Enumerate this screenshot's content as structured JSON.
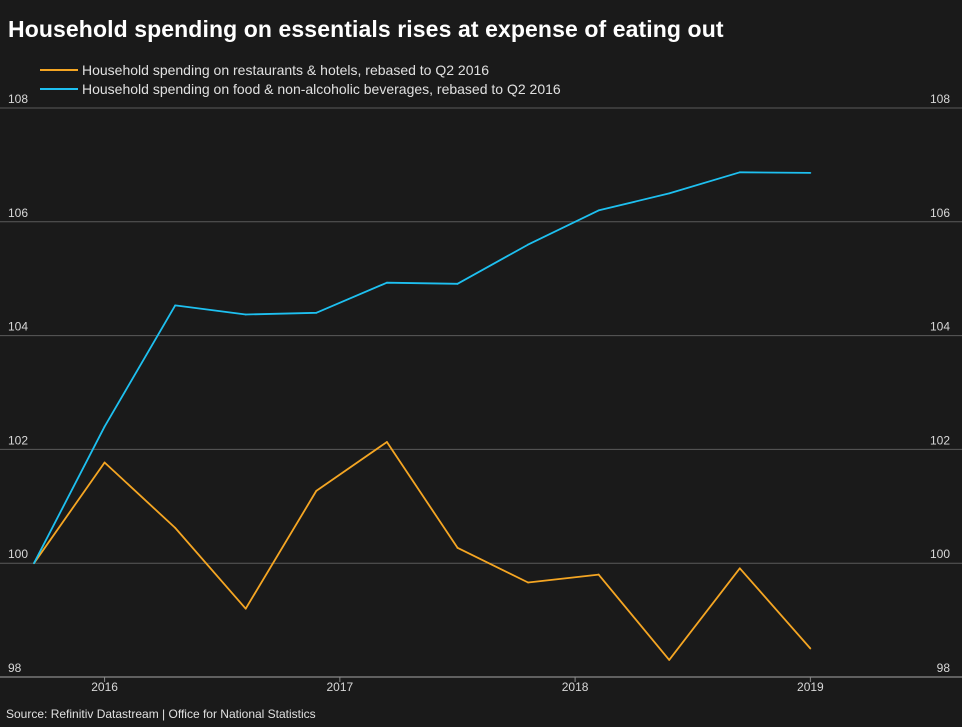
{
  "title": "Household spending on essentials rises at expense of eating out",
  "source": "Source: Refinitiv Datastream | Office for National Statistics",
  "chart_data": {
    "type": "line",
    "title": "Household spending on essentials rises at expense of eating out",
    "xlabel": "",
    "ylabel": "",
    "ylim": [
      98,
      108
    ],
    "yticks": [
      98,
      100,
      102,
      104,
      106,
      108
    ],
    "x_ticks": [
      {
        "label": "2016",
        "x": 2016.25
      },
      {
        "label": "2017",
        "x": 2017.25
      },
      {
        "label": "2018",
        "x": 2018.25
      },
      {
        "label": "2019",
        "x": 2019.25
      }
    ],
    "x": [
      2015.95,
      2016.25,
      2016.55,
      2016.85,
      2017.15,
      2017.45,
      2017.75,
      2018.05,
      2018.35,
      2018.65,
      2018.95,
      2019.25
    ],
    "x_range": [
      2015.95,
      2019.75
    ],
    "series": [
      {
        "name": "Household spending on restaurants & hotels, rebased to Q2 2016",
        "color": "#f5a623",
        "values": [
          100.0,
          101.77,
          100.62,
          99.2,
          101.27,
          102.13,
          100.27,
          99.66,
          99.8,
          98.3,
          99.91,
          98.5
        ]
      },
      {
        "name": "Household spending on food & non-alcoholic beverages, rebased to Q2 2016",
        "color": "#1ec0f0",
        "values": [
          100.0,
          102.4,
          104.53,
          104.37,
          104.4,
          104.93,
          104.91,
          105.6,
          106.2,
          106.5,
          106.87,
          106.86
        ]
      }
    ],
    "grid": true,
    "legend": "top-left"
  }
}
